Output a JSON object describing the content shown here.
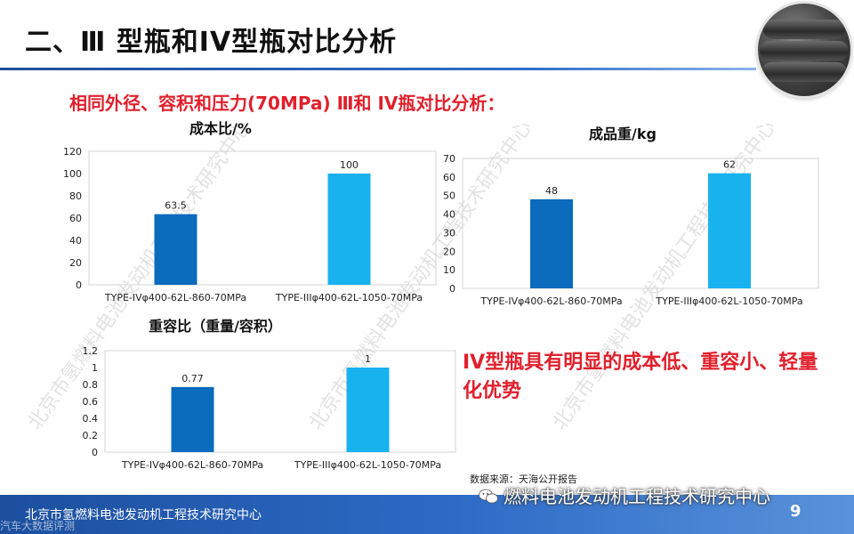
{
  "slide": {
    "title": "二、Ⅲ 型瓶和IV型瓶对比分析",
    "subtitle": "相同外径、容积和压力(70MPa) Ⅲ和 IV瓶对比分析：",
    "conclusion": "IV型瓶具有明显的成本低、重容小、轻量化优势",
    "source": "数据来源：天海公开报告",
    "page_number": "9"
  },
  "watermark_text": "北京市氢燃料电池发动机工程技术研究中心",
  "footer": {
    "org": "北京市氢燃料电池发动机工程技术研究中心",
    "wechat_text": "燃料电池发动机工程技术研究中心",
    "brand": "汽车大数据评测"
  },
  "colors": {
    "series_iv": "#0b6bbd",
    "series_iii": "#18b2ef",
    "title_rule": "#1f4e9a",
    "accent_red": "#e0202c"
  },
  "chart_data": [
    {
      "type": "bar",
      "title": "成本比/%",
      "categories": [
        "TYPE-IVφ400-62L-860-70MPa",
        "TYPE-IIIφ400-62L-1050-70MPa"
      ],
      "values": [
        63.5,
        100
      ],
      "data_labels": [
        "63.5",
        "100"
      ],
      "ylim": [
        0,
        120
      ],
      "yticks": [
        0,
        20,
        40,
        60,
        80,
        100,
        120
      ],
      "ytick_labels": [
        "0",
        "20",
        "40",
        "60",
        "80",
        "100",
        "120"
      ],
      "grid": false,
      "legend": "none"
    },
    {
      "type": "bar",
      "title": "成品重/kg",
      "categories": [
        "TYPE-IVφ400-62L-860-70MPa",
        "TYPE-IIIφ400-62L-1050-70MPa"
      ],
      "values": [
        48,
        62
      ],
      "data_labels": [
        "48",
        "62"
      ],
      "ylim": [
        0,
        70
      ],
      "yticks": [
        0,
        10,
        20,
        30,
        40,
        50,
        60,
        70
      ],
      "ytick_labels": [
        "0",
        "10",
        "20",
        "30",
        "40",
        "50",
        "60",
        "70"
      ],
      "grid": false,
      "legend": "none"
    },
    {
      "type": "bar",
      "title": "重容比（重量/容积）",
      "categories": [
        "TYPE-IVφ400-62L-860-70MPa",
        "TYPE-IIIφ400-62L-1050-70MPa"
      ],
      "values": [
        0.77,
        1
      ],
      "data_labels": [
        "0.77",
        "1"
      ],
      "ylim": [
        0,
        1.2
      ],
      "yticks": [
        0,
        0.2,
        0.4,
        0.6,
        0.8,
        1,
        1.2
      ],
      "ytick_labels": [
        "0",
        "0.2",
        "0.4",
        "0.6",
        "0.8",
        "1",
        "1.2"
      ],
      "grid": false,
      "legend": "none"
    }
  ]
}
